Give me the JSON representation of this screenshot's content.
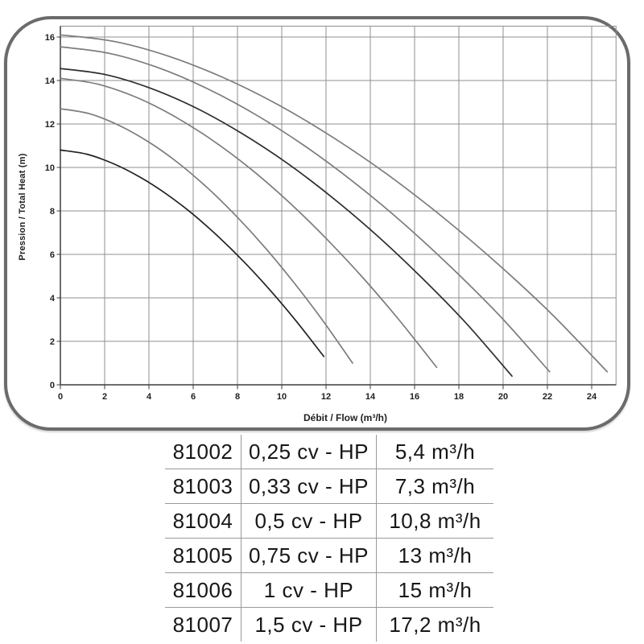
{
  "style": {
    "grid_color": "#8f8f8f",
    "axis_color": "#3d3d3d",
    "card_border_color": "#6b6b6b",
    "tick_label_color": "#1f1f1f",
    "table_line_color": "#9a9a9a",
    "table_text_color": "#171717",
    "curve_gray": "#7c7c7c",
    "curve_dark": "#222222"
  },
  "chart_data": {
    "type": "line",
    "title": "",
    "xlabel": "Débit / Flow (m³/h)",
    "ylabel": "Pression / Total Heat (m)",
    "xlim": [
      0,
      25.1
    ],
    "ylim": [
      0,
      16.5
    ],
    "x_ticks": [
      0,
      2,
      4,
      6,
      8,
      10,
      12,
      14,
      16,
      18,
      20,
      22,
      24
    ],
    "y_ticks": [
      0,
      2,
      4,
      6,
      8,
      10,
      12,
      14,
      16
    ],
    "grid": true,
    "legend": "none",
    "series": [
      {
        "name": "81002",
        "color": "#222222",
        "points": [
          [
            0,
            10.8
          ],
          [
            1.19,
            10.61
          ],
          [
            2.38,
            10.18
          ],
          [
            3.57,
            9.57
          ],
          [
            4.76,
            8.8
          ],
          [
            5.95,
            7.88
          ],
          [
            7.14,
            6.81
          ],
          [
            8.33,
            5.62
          ],
          [
            9.52,
            4.3
          ],
          [
            10.71,
            2.86
          ],
          [
            11.9,
            1.3
          ]
        ]
      },
      {
        "name": "81003",
        "color": "#7c7c7c",
        "points": [
          [
            0,
            12.7
          ],
          [
            1.32,
            12.47
          ],
          [
            2.64,
            11.94
          ],
          [
            3.96,
            11.19
          ],
          [
            5.28,
            10.24
          ],
          [
            6.6,
            9.1
          ],
          [
            7.92,
            7.79
          ],
          [
            9.24,
            6.32
          ],
          [
            10.56,
            4.69
          ],
          [
            11.88,
            2.92
          ],
          [
            13.2,
            1.0
          ]
        ]
      },
      {
        "name": "81004",
        "color": "#7c7c7c",
        "points": [
          [
            0,
            14.1
          ],
          [
            1.7,
            13.83
          ],
          [
            3.4,
            13.24
          ],
          [
            5.1,
            12.38
          ],
          [
            6.8,
            11.3
          ],
          [
            8.5,
            10.01
          ],
          [
            10.2,
            8.52
          ],
          [
            11.9,
            6.84
          ],
          [
            13.6,
            5.0
          ],
          [
            15.3,
            2.98
          ],
          [
            17.0,
            0.8
          ]
        ]
      },
      {
        "name": "81005",
        "color": "#2e2e2e",
        "points": [
          [
            0,
            14.55
          ],
          [
            2.04,
            14.27
          ],
          [
            4.08,
            13.64
          ],
          [
            6.12,
            12.74
          ],
          [
            8.16,
            11.59
          ],
          [
            10.2,
            10.23
          ],
          [
            12.24,
            8.65
          ],
          [
            14.28,
            6.89
          ],
          [
            16.32,
            4.93
          ],
          [
            18.36,
            2.8
          ],
          [
            20.4,
            0.4
          ]
        ]
      },
      {
        "name": "81006",
        "color": "#7c7c7c",
        "points": [
          [
            0,
            15.55
          ],
          [
            2.21,
            15.25
          ],
          [
            4.42,
            14.59
          ],
          [
            6.63,
            13.63
          ],
          [
            8.84,
            12.42
          ],
          [
            11.05,
            10.98
          ],
          [
            13.26,
            9.32
          ],
          [
            15.47,
            7.45
          ],
          [
            17.68,
            5.38
          ],
          [
            19.89,
            3.13
          ],
          [
            22.1,
            0.6
          ]
        ]
      },
      {
        "name": "81007",
        "color": "#7c7c7c",
        "points": [
          [
            0,
            16.1
          ],
          [
            2.47,
            15.79
          ],
          [
            4.94,
            15.1
          ],
          [
            7.41,
            14.11
          ],
          [
            9.88,
            12.86
          ],
          [
            12.35,
            11.36
          ],
          [
            14.82,
            9.64
          ],
          [
            17.29,
            7.7
          ],
          [
            19.76,
            5.56
          ],
          [
            22.23,
            3.22
          ],
          [
            24.7,
            0.6
          ]
        ]
      }
    ]
  },
  "table": {
    "columns": [
      "reference",
      "power",
      "flow"
    ],
    "rows": [
      {
        "reference": "81002",
        "power": "0,25 cv - HP",
        "flow": "5,4 m³/h"
      },
      {
        "reference": "81003",
        "power": "0,33 cv - HP",
        "flow": "7,3 m³/h"
      },
      {
        "reference": "81004",
        "power": "0,5 cv - HP",
        "flow": "10,8 m³/h"
      },
      {
        "reference": "81005",
        "power": "0,75 cv - HP",
        "flow": "13 m³/h"
      },
      {
        "reference": "81006",
        "power": "1 cv - HP",
        "flow": "15 m³/h"
      },
      {
        "reference": "81007",
        "power": "1,5 cv - HP",
        "flow": "17,2 m³/h"
      }
    ]
  }
}
